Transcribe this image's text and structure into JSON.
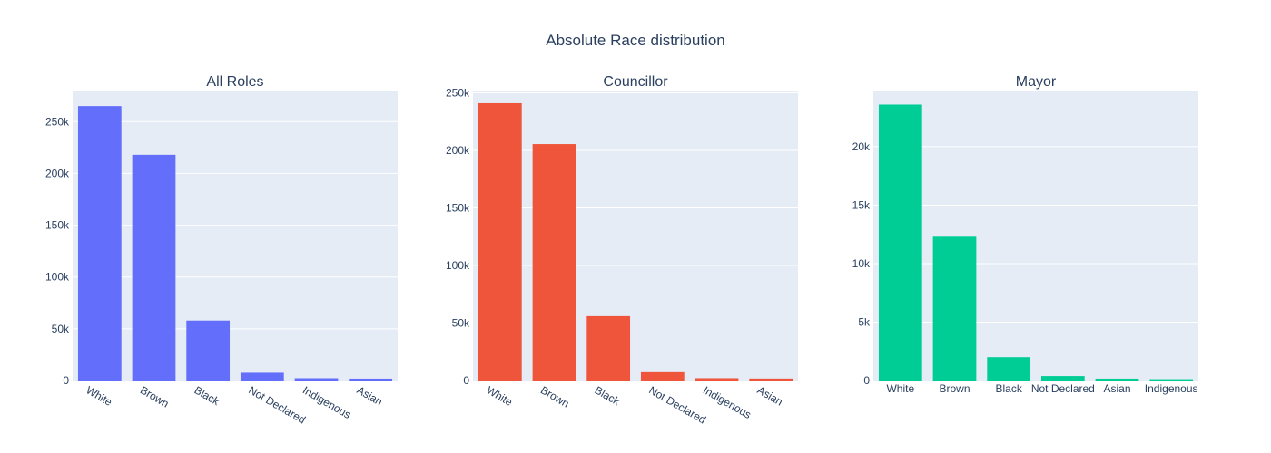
{
  "figure": {
    "title": "Absolute Race distribution",
    "background": "#ffffff",
    "plot_background": "#e5ecf6",
    "grid_color": "#ffffff",
    "text_color": "#2a3f5f"
  },
  "chart_data": [
    {
      "type": "bar",
      "title": "All Roles",
      "xlabel": "",
      "ylabel": "",
      "color": "#636efa",
      "categories": [
        "White",
        "Brown",
        "Black",
        "Not Declared",
        "Indigenous",
        "Asian"
      ],
      "values": [
        265000,
        218000,
        58000,
        7500,
        2200,
        1800
      ],
      "ylim": [
        0,
        280000
      ],
      "yticks": [
        0,
        50000,
        100000,
        150000,
        200000,
        250000
      ],
      "ytick_labels": [
        "0",
        "50k",
        "100k",
        "150k",
        "200k",
        "250k"
      ],
      "xtick_rotation": 30,
      "grid": true,
      "legend": false
    },
    {
      "type": "bar",
      "title": "Councillor",
      "xlabel": "",
      "ylabel": "",
      "color": "#ef553b",
      "categories": [
        "White",
        "Brown",
        "Black",
        "Not Declared",
        "Indigenous",
        "Asian"
      ],
      "values": [
        241000,
        205500,
        56000,
        7200,
        2000,
        1700
      ],
      "ylim": [
        0,
        252000
      ],
      "yticks": [
        0,
        50000,
        100000,
        150000,
        200000,
        250000
      ],
      "ytick_labels": [
        "0",
        "50k",
        "100k",
        "150k",
        "200k",
        "250k"
      ],
      "xtick_rotation": 30,
      "grid": true,
      "legend": false
    },
    {
      "type": "bar",
      "title": "Mayor",
      "xlabel": "",
      "ylabel": "",
      "color": "#00cc96",
      "categories": [
        "White",
        "Brown",
        "Black",
        "Not Declared",
        "Asian",
        "Indigenous"
      ],
      "values": [
        23600,
        12300,
        2000,
        380,
        160,
        110
      ],
      "ylim": [
        0,
        24800
      ],
      "yticks": [
        0,
        5000,
        10000,
        15000,
        20000
      ],
      "ytick_labels": [
        "0",
        "5k",
        "10k",
        "15k",
        "20k"
      ],
      "xtick_rotation": 0,
      "grid": true,
      "legend": false
    }
  ]
}
